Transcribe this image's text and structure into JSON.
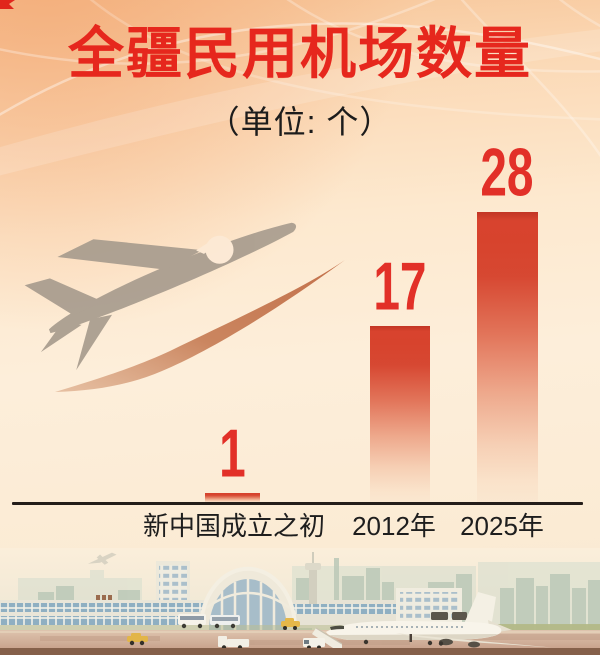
{
  "title": "全疆民用机场数量",
  "subtitle": "（单位: 个）",
  "chart_data": {
    "type": "bar",
    "title": "全疆民用机场数量",
    "unit_label": "（单位: 个）",
    "categories": [
      "新中国成立之初",
      "2012年",
      "2025年"
    ],
    "values": [
      1,
      17,
      28
    ],
    "ylim": [
      0,
      28
    ],
    "grid": false,
    "legend": "none",
    "value_labels_shown": true,
    "bar_color_top": "#d8432e",
    "bar_color_bottom_fade": "rgba(246,206,178,0.13)",
    "value_label_color": "#e23028",
    "axis_line_color": "#241d19"
  },
  "colors": {
    "title_red": "#e6271d",
    "subtitle_text": "#1c1c1c",
    "category_label": "#1e1e1e",
    "background_top": "#f7c598",
    "background_mid": "#fdeeda"
  },
  "decor": {
    "takeoff_plane_icon": "gray-airplane-taking-off-silhouette",
    "contrail_icon": "orange-contrail-swoosh",
    "background_pattern": "faint-white-curved-grid-arcs",
    "bottom_scene": "airport-terminal-skyline-with-parked-airplane-and-vehicles"
  }
}
